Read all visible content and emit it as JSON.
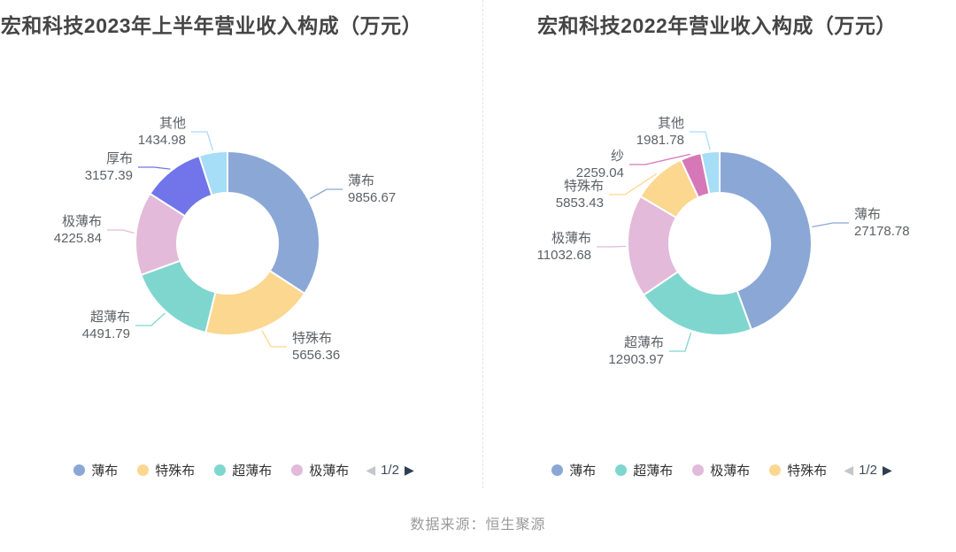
{
  "page": {
    "background": "#ffffff",
    "source_text": "数据来源：恒生聚源"
  },
  "pagination": {
    "page_label": "1/2",
    "prev_icon": "◀",
    "next_icon": "▶",
    "prev_color": "#c3c7cc",
    "next_color": "#2c3e50"
  },
  "chart_data": [
    {
      "type": "pie",
      "donut": true,
      "title": "宏和科技2023年上半年营业收入构成（万元）",
      "unit": "万元",
      "legend_position": "bottom",
      "legend_page": "1/2",
      "slices": [
        {
          "name": "薄布",
          "value": 9856.67,
          "color": "#8BA7D6"
        },
        {
          "name": "特殊布",
          "value": 5656.36,
          "color": "#FBD78F"
        },
        {
          "name": "超薄布",
          "value": 4491.79,
          "color": "#7FD6CF"
        },
        {
          "name": "极薄布",
          "value": 4225.84,
          "color": "#E3BAD9"
        },
        {
          "name": "厚布",
          "value": 3157.39,
          "color": "#7175E9"
        },
        {
          "name": "其他",
          "value": 1434.98,
          "color": "#A6DDF7"
        }
      ]
    },
    {
      "type": "pie",
      "donut": true,
      "title": "宏和科技2022年营业收入构成（万元）",
      "unit": "万元",
      "legend_position": "bottom",
      "legend_page": "1/2",
      "slices": [
        {
          "name": "薄布",
          "value": 27178.78,
          "color": "#8BA7D6"
        },
        {
          "name": "超薄布",
          "value": 12903.97,
          "color": "#7FD6CF"
        },
        {
          "name": "极薄布",
          "value": 11032.68,
          "color": "#E3BAD9"
        },
        {
          "name": "特殊布",
          "value": 5853.43,
          "color": "#FBD78F"
        },
        {
          "name": "纱",
          "value": 2259.04,
          "color": "#D678B7"
        },
        {
          "name": "其他",
          "value": 1981.78,
          "color": "#A6DDF7"
        }
      ]
    }
  ]
}
